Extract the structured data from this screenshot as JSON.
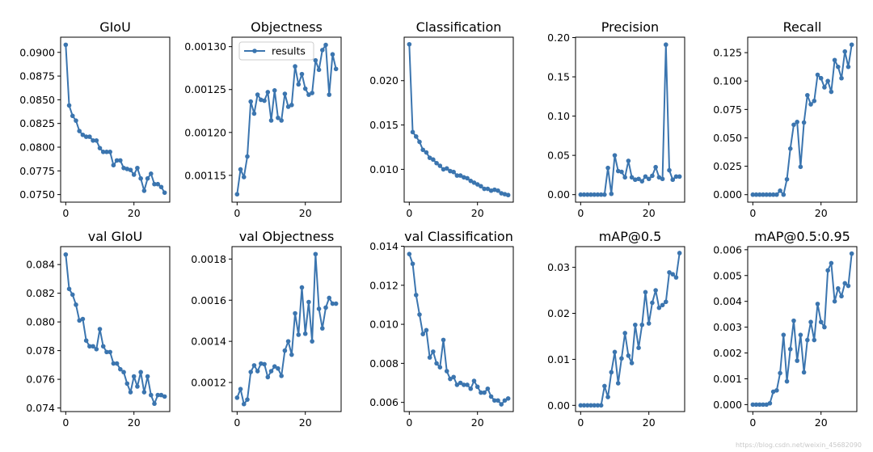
{
  "colors": {
    "line": "#3b75af",
    "axis": "#000000",
    "background": "#ffffff"
  },
  "legend": {
    "label": "results",
    "panel_index": 1,
    "placement": "upper-left"
  },
  "watermark": "https://blog.csdn.net/weixin_45682090",
  "chart_data": [
    {
      "type": "line",
      "title": "GIoU",
      "x": [
        0,
        1,
        2,
        3,
        4,
        5,
        6,
        7,
        8,
        9,
        10,
        11,
        12,
        13,
        14,
        15,
        16,
        17,
        18,
        19,
        20,
        21,
        22,
        23,
        24,
        25,
        26,
        27,
        28,
        29
      ],
      "values": [
        0.0908,
        0.0844,
        0.0833,
        0.0828,
        0.0817,
        0.0813,
        0.0811,
        0.0811,
        0.0807,
        0.0807,
        0.0799,
        0.0795,
        0.0795,
        0.0795,
        0.0781,
        0.0786,
        0.0786,
        0.0778,
        0.0777,
        0.0776,
        0.0771,
        0.0778,
        0.0767,
        0.0754,
        0.0767,
        0.0772,
        0.0761,
        0.0761,
        0.0758,
        0.0752
      ],
      "xlim": [
        -1.5,
        30.5
      ],
      "ylim": [
        0.0742,
        0.0916
      ],
      "yticks": [
        0.075,
        0.0775,
        0.08,
        0.0825,
        0.085,
        0.0875,
        0.09
      ],
      "yticklabels": [
        "0.0750",
        "0.0775",
        "0.0800",
        "0.0825",
        "0.0850",
        "0.0875",
        "0.0900"
      ],
      "xticks": [
        0,
        20
      ],
      "xticklabels": [
        "0",
        "20"
      ]
    },
    {
      "type": "line",
      "title": "Objectness",
      "x": [
        0,
        1,
        2,
        3,
        4,
        5,
        6,
        7,
        8,
        9,
        10,
        11,
        12,
        13,
        14,
        15,
        16,
        17,
        18,
        19,
        20,
        21,
        22,
        23,
        24,
        25,
        26,
        27,
        28,
        29
      ],
      "values": [
        0.001128,
        0.001157,
        0.001148,
        0.001172,
        0.001236,
        0.001222,
        0.001244,
        0.001238,
        0.001237,
        0.001247,
        0.001214,
        0.001249,
        0.001217,
        0.001214,
        0.001245,
        0.00123,
        0.001232,
        0.001277,
        0.001256,
        0.001268,
        0.001251,
        0.001244,
        0.001246,
        0.001284,
        0.001273,
        0.001296,
        0.001302,
        0.001244,
        0.001291,
        0.001274
      ],
      "xlim": [
        -1.5,
        30.5
      ],
      "ylim": [
        0.0011188,
        0.001311
      ],
      "yticks": [
        0.00115,
        0.0012,
        0.00125,
        0.0013
      ],
      "yticklabels": [
        "0.00115",
        "0.00120",
        "0.00125",
        "0.00130"
      ],
      "xticks": [
        0,
        20
      ],
      "xticklabels": [
        "0",
        "20"
      ]
    },
    {
      "type": "line",
      "title": "Classification",
      "x": [
        0,
        1,
        2,
        3,
        4,
        5,
        6,
        7,
        8,
        9,
        10,
        11,
        12,
        13,
        14,
        15,
        16,
        17,
        18,
        19,
        20,
        21,
        22,
        23,
        24,
        25,
        26,
        27,
        28,
        29
      ],
      "values": [
        0.0241,
        0.0142,
        0.0137,
        0.0131,
        0.0122,
        0.0119,
        0.0113,
        0.0111,
        0.0107,
        0.0104,
        0.01,
        0.0101,
        0.0098,
        0.0097,
        0.0093,
        0.0093,
        0.0091,
        0.009,
        0.0087,
        0.0085,
        0.0083,
        0.0081,
        0.0078,
        0.0078,
        0.0076,
        0.0077,
        0.0076,
        0.0073,
        0.0072,
        0.0071
      ],
      "xlim": [
        -1.5,
        30.5
      ],
      "ylim": [
        0.0063,
        0.0249
      ],
      "yticks": [
        0.01,
        0.015,
        0.02
      ],
      "yticklabels": [
        "0.010",
        "0.015",
        "0.020"
      ],
      "xticks": [
        0,
        20
      ],
      "xticklabels": [
        "0",
        "20"
      ]
    },
    {
      "type": "line",
      "title": "Precision",
      "x": [
        0,
        1,
        2,
        3,
        4,
        5,
        6,
        7,
        8,
        9,
        10,
        11,
        12,
        13,
        14,
        15,
        16,
        17,
        18,
        19,
        20,
        21,
        22,
        23,
        24,
        25,
        26,
        27,
        28,
        29
      ],
      "values": [
        0,
        0,
        0,
        0,
        0,
        0,
        0,
        0,
        0.034,
        0.001,
        0.05,
        0.03,
        0.029,
        0.022,
        0.043,
        0.022,
        0.019,
        0.02,
        0.017,
        0.023,
        0.02,
        0.024,
        0.035,
        0.022,
        0.02,
        0.191,
        0.031,
        0.019,
        0.023,
        0.023
      ],
      "xlim": [
        -1.5,
        30.5
      ],
      "ylim": [
        -0.0096,
        0.2005
      ],
      "yticks": [
        0,
        0.05,
        0.1,
        0.15,
        0.2
      ],
      "yticklabels": [
        "0.00",
        "0.05",
        "0.10",
        "0.15",
        "0.20"
      ],
      "xticks": [
        0,
        20
      ],
      "xticklabels": [
        "0",
        "20"
      ]
    },
    {
      "type": "line",
      "title": "Recall",
      "x": [
        0,
        1,
        2,
        3,
        4,
        5,
        6,
        7,
        8,
        9,
        10,
        11,
        12,
        13,
        14,
        15,
        16,
        17,
        18,
        19,
        20,
        21,
        22,
        23,
        24,
        25,
        26,
        27,
        28,
        29
      ],
      "values": [
        0,
        0,
        0,
        0,
        0,
        0,
        0,
        0,
        0.0035,
        0,
        0.0135,
        0.0405,
        0.0615,
        0.064,
        0.0245,
        0.0635,
        0.0875,
        0.0795,
        0.0825,
        0.1055,
        0.1025,
        0.0945,
        0.1,
        0.0905,
        0.1185,
        0.1125,
        0.1025,
        0.126,
        0.1125,
        0.132
      ],
      "xlim": [
        -1.5,
        30.5
      ],
      "ylim": [
        -0.0066,
        0.1386
      ],
      "yticks": [
        0,
        0.025,
        0.05,
        0.075,
        0.1,
        0.125
      ],
      "yticklabels": [
        "0.000",
        "0.025",
        "0.050",
        "0.075",
        "0.100",
        "0.125"
      ],
      "xticks": [
        0,
        20
      ],
      "xticklabels": [
        "0",
        "20"
      ]
    },
    {
      "type": "line",
      "title": "val GIoU",
      "x": [
        0,
        1,
        2,
        3,
        4,
        5,
        6,
        7,
        8,
        9,
        10,
        11,
        12,
        13,
        14,
        15,
        16,
        17,
        18,
        19,
        20,
        21,
        22,
        23,
        24,
        25,
        26,
        27,
        28,
        29
      ],
      "values": [
        0.0847,
        0.0823,
        0.0819,
        0.0812,
        0.0801,
        0.0802,
        0.0787,
        0.0783,
        0.0783,
        0.0781,
        0.0795,
        0.0783,
        0.0779,
        0.0779,
        0.0771,
        0.0771,
        0.0767,
        0.0765,
        0.0757,
        0.0751,
        0.0762,
        0.0755,
        0.0765,
        0.0751,
        0.0762,
        0.0749,
        0.0743,
        0.0749,
        0.0749,
        0.0748
      ],
      "xlim": [
        -1.5,
        30.5
      ],
      "ylim": [
        0.07375,
        0.08525
      ],
      "yticks": [
        0.074,
        0.076,
        0.078,
        0.08,
        0.082,
        0.084
      ],
      "yticklabels": [
        "0.074",
        "0.076",
        "0.078",
        "0.080",
        "0.082",
        "0.084"
      ],
      "xticks": [
        0,
        20
      ],
      "xticklabels": [
        "0",
        "20"
      ]
    },
    {
      "type": "line",
      "title": "val Objectness",
      "x": [
        0,
        1,
        2,
        3,
        4,
        5,
        6,
        7,
        8,
        9,
        10,
        11,
        12,
        13,
        14,
        15,
        16,
        17,
        18,
        19,
        20,
        21,
        22,
        23,
        24,
        25,
        26,
        27,
        28,
        29
      ],
      "values": [
        0.001126,
        0.001168,
        0.001095,
        0.001117,
        0.001251,
        0.001283,
        0.001255,
        0.001292,
        0.001289,
        0.001226,
        0.001255,
        0.001278,
        0.001268,
        0.001232,
        0.001355,
        0.0014,
        0.001335,
        0.001536,
        0.001432,
        0.001662,
        0.001437,
        0.001591,
        0.0014,
        0.001824,
        0.001558,
        0.001463,
        0.001564,
        0.001611,
        0.001583,
        0.001583
      ],
      "xlim": [
        -1.5,
        30.5
      ],
      "ylim": [
        0.0010586,
        0.0018604
      ],
      "yticks": [
        0.0012,
        0.0014,
        0.0016,
        0.0018
      ],
      "yticklabels": [
        "0.0012",
        "0.0014",
        "0.0016",
        "0.0018"
      ],
      "xticks": [
        0,
        20
      ],
      "xticklabels": [
        "0",
        "20"
      ]
    },
    {
      "type": "line",
      "title": "val Classification",
      "x": [
        0,
        1,
        2,
        3,
        4,
        5,
        6,
        7,
        8,
        9,
        10,
        11,
        12,
        13,
        14,
        15,
        16,
        17,
        18,
        19,
        20,
        21,
        22,
        23,
        24,
        25,
        26,
        27,
        28,
        29
      ],
      "values": [
        0.0136,
        0.0131,
        0.0115,
        0.0105,
        0.0095,
        0.0097,
        0.0083,
        0.0086,
        0.008,
        0.0078,
        0.0092,
        0.0076,
        0.0072,
        0.0073,
        0.0069,
        0.007,
        0.0069,
        0.0069,
        0.0067,
        0.0071,
        0.0068,
        0.0065,
        0.0065,
        0.0067,
        0.0063,
        0.0061,
        0.0061,
        0.0059,
        0.0061,
        0.0062
      ],
      "xlim": [
        -1.5,
        30.5
      ],
      "ylim": [
        0.00553,
        0.01398
      ],
      "yticks": [
        0.006,
        0.008,
        0.01,
        0.012,
        0.014
      ],
      "yticklabels": [
        "0.006",
        "0.008",
        "0.010",
        "0.012",
        "0.014"
      ],
      "xticks": [
        0,
        20
      ],
      "xticklabels": [
        "0",
        "20"
      ]
    },
    {
      "type": "line",
      "title": "mAP@0.5",
      "x": [
        0,
        1,
        2,
        3,
        4,
        5,
        6,
        7,
        8,
        9,
        10,
        11,
        12,
        13,
        14,
        15,
        16,
        17,
        18,
        19,
        20,
        21,
        22,
        23,
        24,
        25,
        26,
        27,
        28,
        29
      ],
      "values": [
        0,
        0,
        0,
        0,
        0,
        0,
        0,
        0.0042,
        0.0018,
        0.0072,
        0.0116,
        0.0048,
        0.0102,
        0.0157,
        0.0108,
        0.0092,
        0.0175,
        0.0125,
        0.0175,
        0.0246,
        0.0178,
        0.0223,
        0.025,
        0.0212,
        0.0218,
        0.0225,
        0.0289,
        0.0285,
        0.0278,
        0.0331
      ],
      "xlim": [
        -1.5,
        30.5
      ],
      "ylim": [
        -0.00135,
        0.0345
      ],
      "yticks": [
        0,
        0.01,
        0.02,
        0.03
      ],
      "yticklabels": [
        "0.00",
        "0.01",
        "0.02",
        "0.03"
      ],
      "xticks": [
        0,
        20
      ],
      "xticklabels": [
        "0",
        "20"
      ]
    },
    {
      "type": "line",
      "title": "mAP@0.5:0.95",
      "x": [
        0,
        1,
        2,
        3,
        4,
        5,
        6,
        7,
        8,
        9,
        10,
        11,
        12,
        13,
        14,
        15,
        16,
        17,
        18,
        19,
        20,
        21,
        22,
        23,
        24,
        25,
        26,
        27,
        28,
        29
      ],
      "values": [
        0,
        0,
        0,
        0,
        0,
        5e-05,
        0.0005,
        0.00055,
        0.00122,
        0.0027,
        0.0009,
        0.00215,
        0.00325,
        0.0017,
        0.0027,
        0.00125,
        0.0025,
        0.0032,
        0.0025,
        0.0039,
        0.0032,
        0.003,
        0.0052,
        0.00548,
        0.004,
        0.0045,
        0.0042,
        0.0047,
        0.0046,
        0.00585
      ],
      "xlim": [
        -1.5,
        30.5
      ],
      "ylim": [
        -0.00027,
        0.00612
      ],
      "yticks": [
        0,
        0.001,
        0.002,
        0.003,
        0.004,
        0.005,
        0.006
      ],
      "yticklabels": [
        "0.000",
        "0.001",
        "0.002",
        "0.003",
        "0.004",
        "0.005",
        "0.006"
      ],
      "xticks": [
        0,
        20
      ],
      "xticklabels": [
        "0",
        "20"
      ]
    }
  ]
}
